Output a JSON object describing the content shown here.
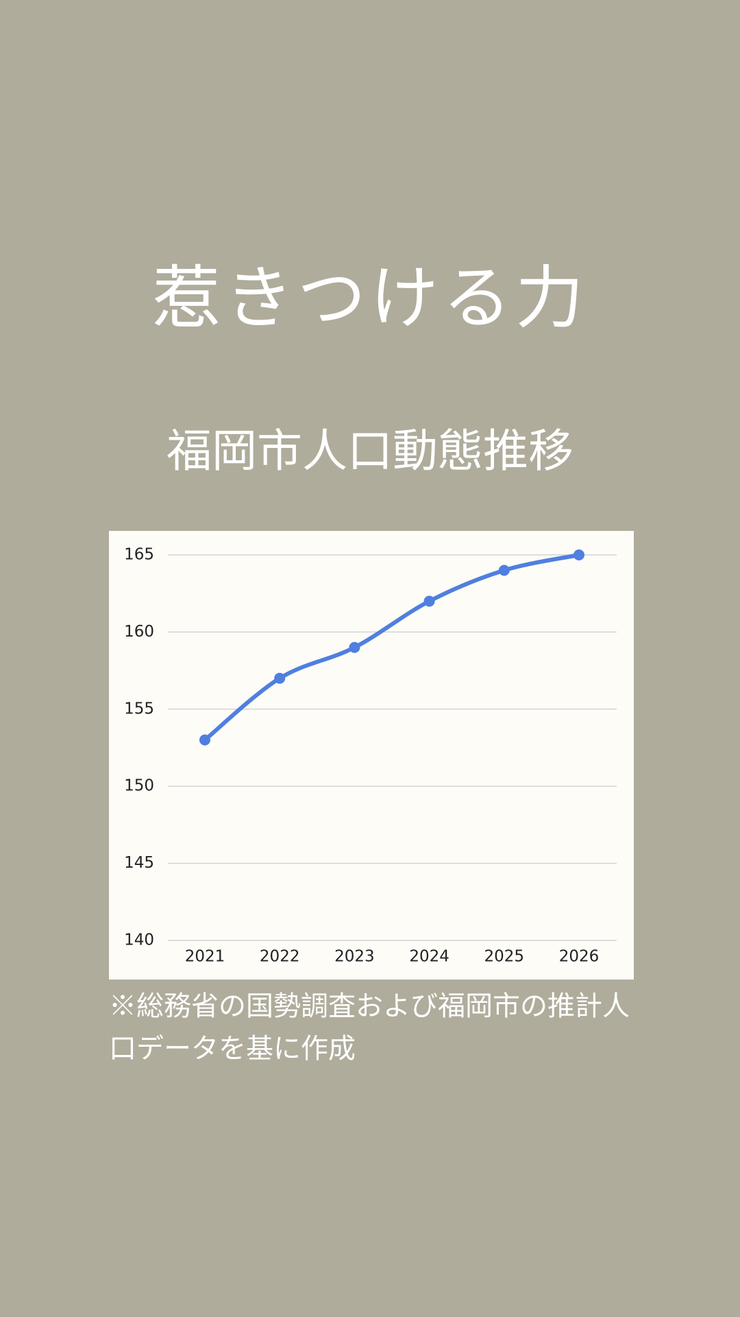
{
  "header": {
    "title": "惹きつける力"
  },
  "chart_data": {
    "type": "line",
    "title": "福岡市人口動態推移",
    "categories": [
      "2021",
      "2022",
      "2023",
      "2024",
      "2025",
      "2026"
    ],
    "values": [
      153,
      157,
      159,
      162,
      164,
      165
    ],
    "color": "#4f7fdf",
    "ylim": [
      140,
      165
    ],
    "yticks": [
      140,
      145,
      150,
      155,
      160,
      165
    ],
    "grid": true
  },
  "footnote": "※総務省の国勢調査および福岡市の推計人口データを基に作成"
}
